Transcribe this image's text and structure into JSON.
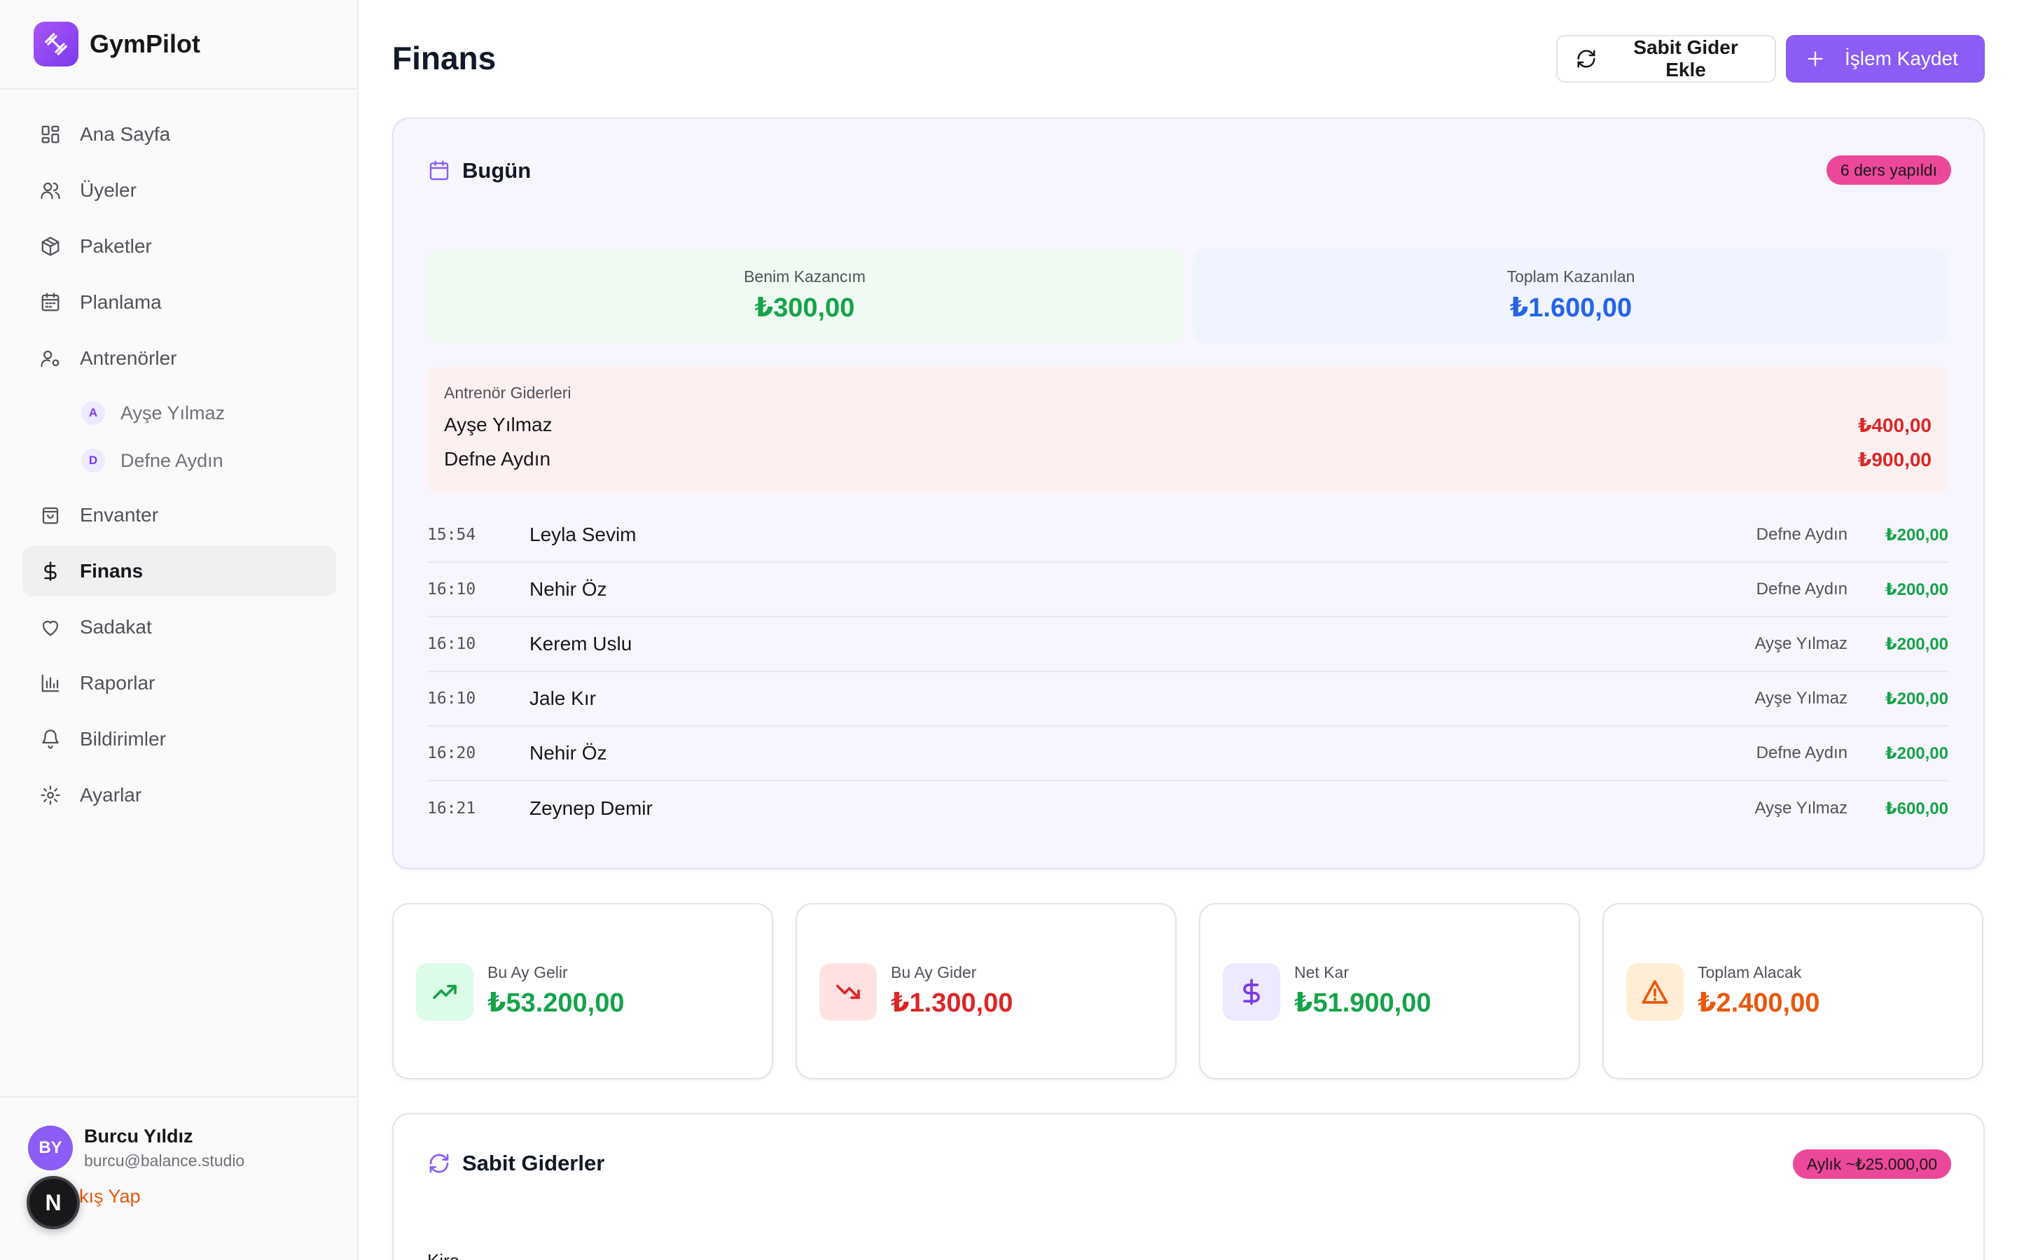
{
  "brand": {
    "name": "GymPilot"
  },
  "sidebar": {
    "items": [
      {
        "label": "Ana Sayfa",
        "icon": "grid-icon"
      },
      {
        "label": "Üyeler",
        "icon": "users-icon"
      },
      {
        "label": "Paketler",
        "icon": "package-icon"
      },
      {
        "label": "Planlama",
        "icon": "calendar-icon"
      },
      {
        "label": "Antrenörler",
        "icon": "user-cog-icon"
      },
      {
        "label": "Envanter",
        "icon": "shopping-bag-icon"
      },
      {
        "label": "Finans",
        "icon": "dollar-icon"
      },
      {
        "label": "Sadakat",
        "icon": "heart-icon"
      },
      {
        "label": "Raporlar",
        "icon": "bar-chart-icon"
      },
      {
        "label": "Bildirimler",
        "icon": "bell-icon"
      },
      {
        "label": "Ayarlar",
        "icon": "gear-icon"
      }
    ],
    "trainers": [
      {
        "initial": "A",
        "name": "Ayşe Yılmaz"
      },
      {
        "initial": "D",
        "name": "Defne Aydın"
      }
    ],
    "active": "Finans"
  },
  "user": {
    "initials": "BY",
    "name": "Burcu Yıldız",
    "email": "burcu@balance.studio",
    "logout_label": "Çıkış Yap",
    "badge": "N"
  },
  "header": {
    "title": "Finans",
    "fixed_expense_button": "Sabit Gider Ekle",
    "save_transaction_button": "İşlem Kaydet"
  },
  "today": {
    "title": "Bugün",
    "badge": "6 ders yapıldı",
    "my_earnings_label": "Benim Kazancım",
    "my_earnings_value": "₺300,00",
    "total_earned_label": "Toplam Kazanılan",
    "total_earned_value": "₺1.600,00",
    "trainer_expenses_title": "Antrenör Giderleri",
    "trainer_expenses": [
      {
        "name": "Ayşe Yılmaz",
        "amount": "₺400,00"
      },
      {
        "name": "Defne Aydın",
        "amount": "₺900,00"
      }
    ],
    "sessions": [
      {
        "time": "15:54",
        "member": "Leyla Sevim",
        "trainer": "Defne Aydın",
        "amount": "₺200,00"
      },
      {
        "time": "16:10",
        "member": "Nehir Öz",
        "trainer": "Defne Aydın",
        "amount": "₺200,00"
      },
      {
        "time": "16:10",
        "member": "Kerem Uslu",
        "trainer": "Ayşe Yılmaz",
        "amount": "₺200,00"
      },
      {
        "time": "16:10",
        "member": "Jale Kır",
        "trainer": "Ayşe Yılmaz",
        "amount": "₺200,00"
      },
      {
        "time": "16:20",
        "member": "Nehir Öz",
        "trainer": "Defne Aydın",
        "amount": "₺200,00"
      },
      {
        "time": "16:21",
        "member": "Zeynep Demir",
        "trainer": "Ayşe Yılmaz",
        "amount": "₺600,00"
      }
    ]
  },
  "kpis": {
    "income": {
      "label": "Bu Ay Gelir",
      "value": "₺53.200,00",
      "icon": "trending-up-icon"
    },
    "expense": {
      "label": "Bu Ay Gider",
      "value": "₺1.300,00",
      "icon": "trending-down-icon"
    },
    "net": {
      "label": "Net Kar",
      "value": "₺51.900,00",
      "icon": "dollar-icon"
    },
    "receivable": {
      "label": "Toplam Alacak",
      "value": "₺2.400,00",
      "icon": "alert-triangle-icon"
    }
  },
  "fixed_expenses": {
    "title": "Sabit Giderler",
    "badge": "Aylık ~₺25.000,00",
    "first_item": "Kira"
  },
  "colors": {
    "accent": "#8b5cf6",
    "pink_badge": "#ec4899",
    "green": "#16a34a",
    "red": "#dc2626",
    "blue": "#2563eb",
    "orange": "#ea580c"
  }
}
